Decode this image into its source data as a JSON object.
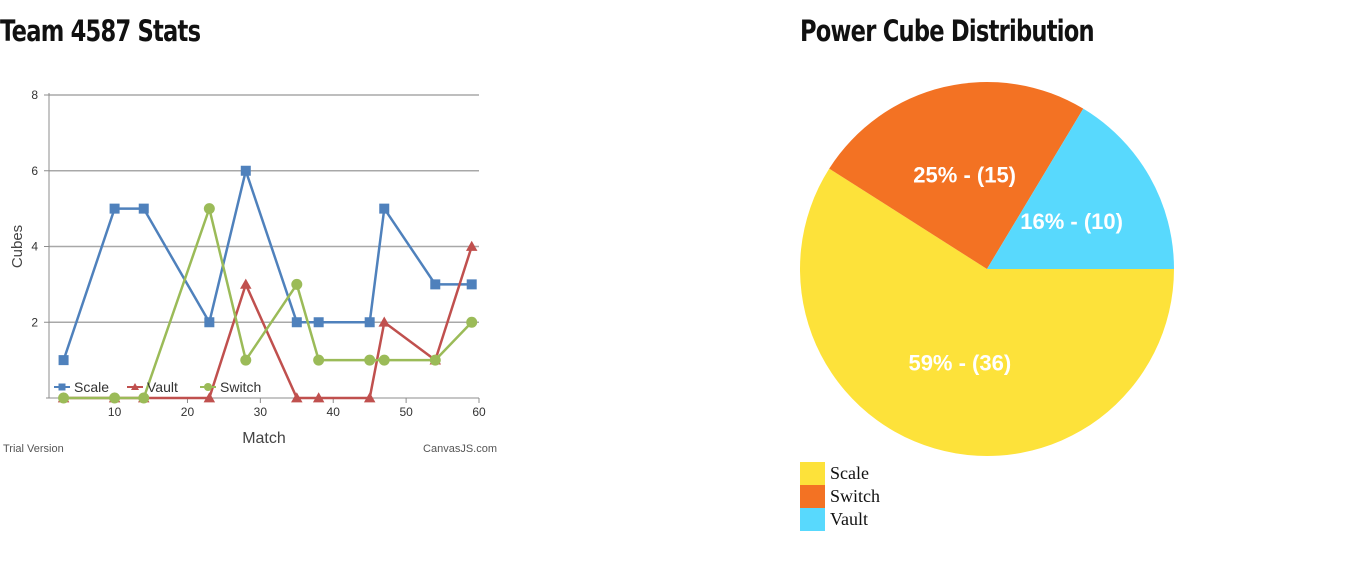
{
  "headings": {
    "left": "Team 4587 Stats",
    "right": "Power Cube Distribution"
  },
  "chart_data": [
    {
      "type": "line",
      "title": "",
      "xlabel": "Match",
      "ylabel": "Cubes",
      "xlim": [
        1,
        60
      ],
      "ylim": [
        0,
        8
      ],
      "xticks": [
        10,
        20,
        30,
        40,
        50,
        60
      ],
      "yticks": [
        2,
        4,
        6,
        8
      ],
      "grid": true,
      "legend_position": "bottom-left",
      "footer_left": "Trial Version",
      "footer_right": "CanvasJS.com",
      "series": [
        {
          "name": "Scale",
          "color": "#4f81bc",
          "marker": "square",
          "points": [
            [
              3,
              1
            ],
            [
              10,
              5
            ],
            [
              14,
              5
            ],
            [
              23,
              2
            ],
            [
              28,
              6
            ],
            [
              35,
              2
            ],
            [
              38,
              2
            ],
            [
              45,
              2
            ],
            [
              47,
              5
            ],
            [
              54,
              3
            ],
            [
              59,
              3
            ]
          ]
        },
        {
          "name": "Vault",
          "color": "#c0504e",
          "marker": "triangle",
          "points": [
            [
              3,
              0
            ],
            [
              10,
              0
            ],
            [
              14,
              0
            ],
            [
              23,
              0
            ],
            [
              28,
              3
            ],
            [
              35,
              0
            ],
            [
              38,
              0
            ],
            [
              45,
              0
            ],
            [
              47,
              2
            ],
            [
              54,
              1
            ],
            [
              59,
              4
            ]
          ]
        },
        {
          "name": "Switch",
          "color": "#9bbb58",
          "marker": "circle",
          "points": [
            [
              3,
              0
            ],
            [
              10,
              0
            ],
            [
              14,
              0
            ],
            [
              23,
              5
            ],
            [
              28,
              1
            ],
            [
              35,
              3
            ],
            [
              38,
              1
            ],
            [
              45,
              1
            ],
            [
              47,
              1
            ],
            [
              54,
              1
            ],
            [
              59,
              2
            ]
          ]
        }
      ]
    },
    {
      "type": "pie",
      "title": "",
      "legend_position": "bottom-left",
      "slices": [
        {
          "name": "Scale",
          "value": 36,
          "label": "59% - (36)",
          "color": "#fde23a"
        },
        {
          "name": "Switch",
          "value": 15,
          "label": "25% - (15)",
          "color": "#f37223"
        },
        {
          "name": "Vault",
          "value": 10,
          "label": "16% - (10)",
          "color": "#58d9fd"
        }
      ]
    }
  ]
}
